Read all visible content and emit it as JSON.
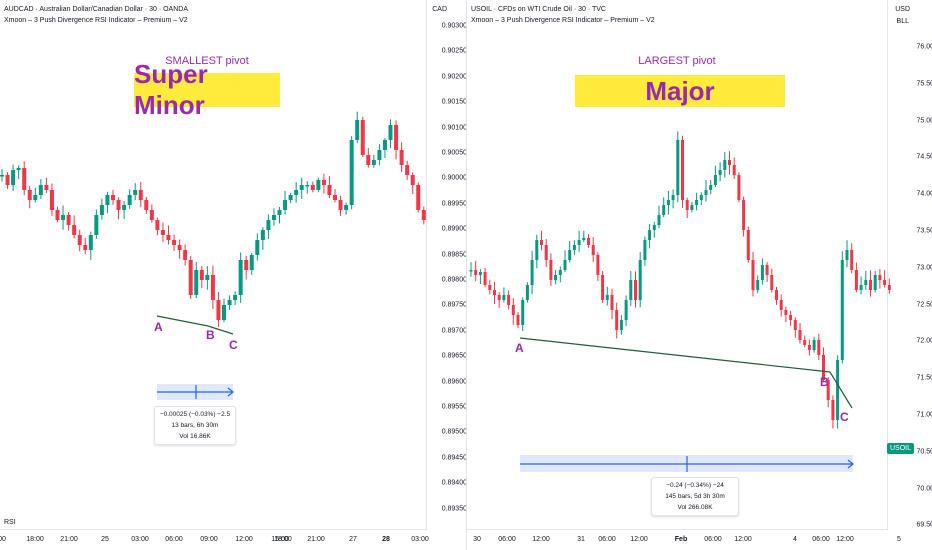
{
  "colors": {
    "up": "#089981",
    "down": "#f23645",
    "pivot": "#9c27b0",
    "highlight": "#ffeb3b",
    "measure": "#2962ff",
    "trendline": "#1e5e3a"
  },
  "left": {
    "title": "AUDCAD · Australian Dollar/Canadian Dollar · 30 · OANDA",
    "indicator": "Xmoon – 3 Push Divergence RSI Indicator – Premium – V2",
    "currency": "CAD",
    "pivot_caption": "SMALLEST pivot",
    "pivot_label": "Super Minor",
    "points": [
      "A",
      "B",
      "C"
    ],
    "price_labels": [
      "0.90300",
      "0.90250",
      "0.90200",
      "0.90150",
      "0.90100",
      "0.90050",
      "0.90000",
      "0.89950",
      "0.89900",
      "0.89850",
      "0.89800",
      "0.89750",
      "0.89700",
      "0.89650",
      "0.89600",
      "0.89550",
      "0.89500",
      "0.89450",
      "0.89400",
      "0.89350"
    ],
    "time_labels": [
      "00",
      "18:00",
      "21:00",
      "25",
      "03:00",
      "06:00",
      "09:00",
      "12:00",
      "15:00",
      "18:00",
      "21:00",
      "27",
      "28",
      "03:00"
    ],
    "bold_time": "28",
    "stats": [
      "−0.00025 (−0.03%) −2.5",
      "13 bars, 6h 30m",
      "Vol 16.86K"
    ],
    "rsi_label": "RSI"
  },
  "right": {
    "title": "USOIL · CFDs on WTI Crude Oil · 30 · TVC",
    "indicator": "Xmoon – 3 Push Divergence RSI Indicator – Premium – V2",
    "currency": "USD",
    "currency_sub": "BLL",
    "pivot_caption": "LARGEST pivot",
    "pivot_label": "Major",
    "points": [
      "A",
      "B",
      "C"
    ],
    "price_labels": [
      "76.00",
      "75.50",
      "75.00",
      "74.50",
      "74.00",
      "73.50",
      "73.00",
      "72.50",
      "72.00",
      "71.50",
      "71.00",
      "70.50",
      "70.00",
      "69.50"
    ],
    "time_labels": [
      "30",
      "06:00",
      "12:00",
      "31",
      "06:00",
      "12:00",
      "Feb",
      "06:00",
      "12:00",
      "4",
      "06:00",
      "12:00",
      "5"
    ],
    "bold_time": "Feb",
    "stats": [
      "−0.24 (−0.34%) −24",
      "145 bars, 5d 3h 30m",
      "Vol 266.08K"
    ],
    "price_tag": "USOIL"
  }
}
